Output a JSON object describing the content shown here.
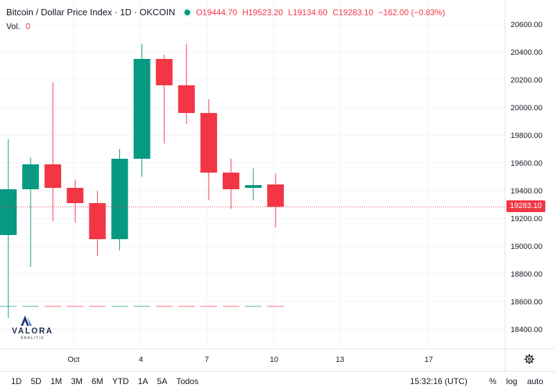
{
  "header": {
    "symbol": "Bitcoin / Dollar Price Index · 1D · OKCOIN",
    "open": "O19444.70",
    "high": "H19523.20",
    "low": "L19134.60",
    "close": "C19283.10",
    "change": "−162.00 (−0.83%)"
  },
  "volume": {
    "label": "Vol.",
    "value": "0"
  },
  "last_price_tag": "19283.10",
  "colors": {
    "up": "#089981",
    "down": "#f23645",
    "grid": "#f0f3fa",
    "axis_text": "#131722"
  },
  "logo": {
    "name": "VALORA",
    "sub": "ANALITIK"
  },
  "bottom_bar": {
    "ranges": [
      "1D",
      "5D",
      "1M",
      "3M",
      "6M",
      "YTD",
      "1A",
      "5A",
      "Todos"
    ],
    "clock": "15:32:16 (UTC)",
    "options": [
      "%",
      "log",
      "auto"
    ]
  },
  "chart_data": {
    "type": "candlestick",
    "y_ticks": [
      "20600.00",
      "20400.00",
      "20200.00",
      "20000.00",
      "19800.00",
      "19600.00",
      "19400.00",
      "19200.00",
      "19000.00",
      "18800.00",
      "18600.00",
      "18400.00"
    ],
    "ylim": [
      18300,
      20650
    ],
    "x_ticks": [
      "Oct",
      "4",
      "7",
      "10",
      "13",
      "17"
    ],
    "last_price": 19283.1,
    "candles": [
      {
        "open": 19080,
        "high": 19770,
        "low": 18480,
        "close": 19410
      },
      {
        "open": 19410,
        "high": 19640,
        "low": 18850,
        "close": 19590
      },
      {
        "open": 19590,
        "high": 20180,
        "low": 19180,
        "close": 19420
      },
      {
        "open": 19420,
        "high": 19480,
        "low": 19170,
        "close": 19310
      },
      {
        "open": 19310,
        "high": 19400,
        "low": 18930,
        "close": 19050
      },
      {
        "open": 19050,
        "high": 19700,
        "low": 18970,
        "close": 19630
      },
      {
        "open": 19630,
        "high": 20460,
        "low": 19500,
        "close": 20350
      },
      {
        "open": 20350,
        "high": 20380,
        "low": 19740,
        "close": 20160
      },
      {
        "open": 20160,
        "high": 20460,
        "low": 19880,
        "close": 19960
      },
      {
        "open": 19960,
        "high": 20060,
        "low": 19330,
        "close": 19530
      },
      {
        "open": 19530,
        "high": 19630,
        "low": 19270,
        "close": 19410
      },
      {
        "open": 19420,
        "high": 19560,
        "low": 19330,
        "close": 19440
      },
      {
        "open": 19444.7,
        "high": 19523.2,
        "low": 19134.6,
        "close": 19283.1
      }
    ]
  }
}
